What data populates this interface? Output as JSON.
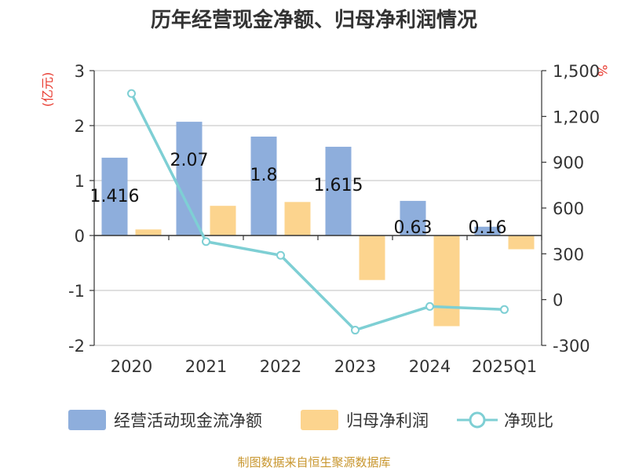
{
  "chart_data": {
    "type": "bar+line",
    "title": "历年经营现金净额、归母净利润情况",
    "categories": [
      "2020",
      "2021",
      "2022",
      "2023",
      "2024",
      "2025Q1"
    ],
    "series": [
      {
        "name": "经营活动现金流净额",
        "type": "bar",
        "axis": "left",
        "color": "#8eaedc",
        "values": [
          1.416,
          2.07,
          1.8,
          1.615,
          0.63,
          0.16
        ],
        "labels": [
          "1.416",
          "2.07",
          "1.8",
          "1.615",
          "0.63",
          "0.16"
        ]
      },
      {
        "name": "归母净利润",
        "type": "bar",
        "axis": "left",
        "color": "#fcd48e",
        "values": [
          0.11,
          0.54,
          0.61,
          -0.81,
          -1.65,
          -0.25
        ]
      },
      {
        "name": "净现比",
        "type": "line",
        "axis": "right",
        "color": "#7ecfd4",
        "values": [
          1350,
          380,
          290,
          -200,
          -45,
          -65
        ]
      }
    ],
    "left_axis": {
      "unit": "(亿元)",
      "min": -2,
      "max": 3,
      "ticks": [
        3,
        2,
        1,
        0,
        -1,
        -2
      ]
    },
    "right_axis": {
      "unit": "%",
      "min": -300,
      "max": 1500,
      "ticks": [
        1500,
        1200,
        900,
        600,
        300,
        0,
        -300
      ],
      "tick_labels": [
        "1,500",
        "1,200",
        "900",
        "600",
        "300",
        "0",
        "-300"
      ]
    },
    "grid": true,
    "legend_position": "bottom"
  },
  "source": "制图数据来自恒生聚源数据库"
}
